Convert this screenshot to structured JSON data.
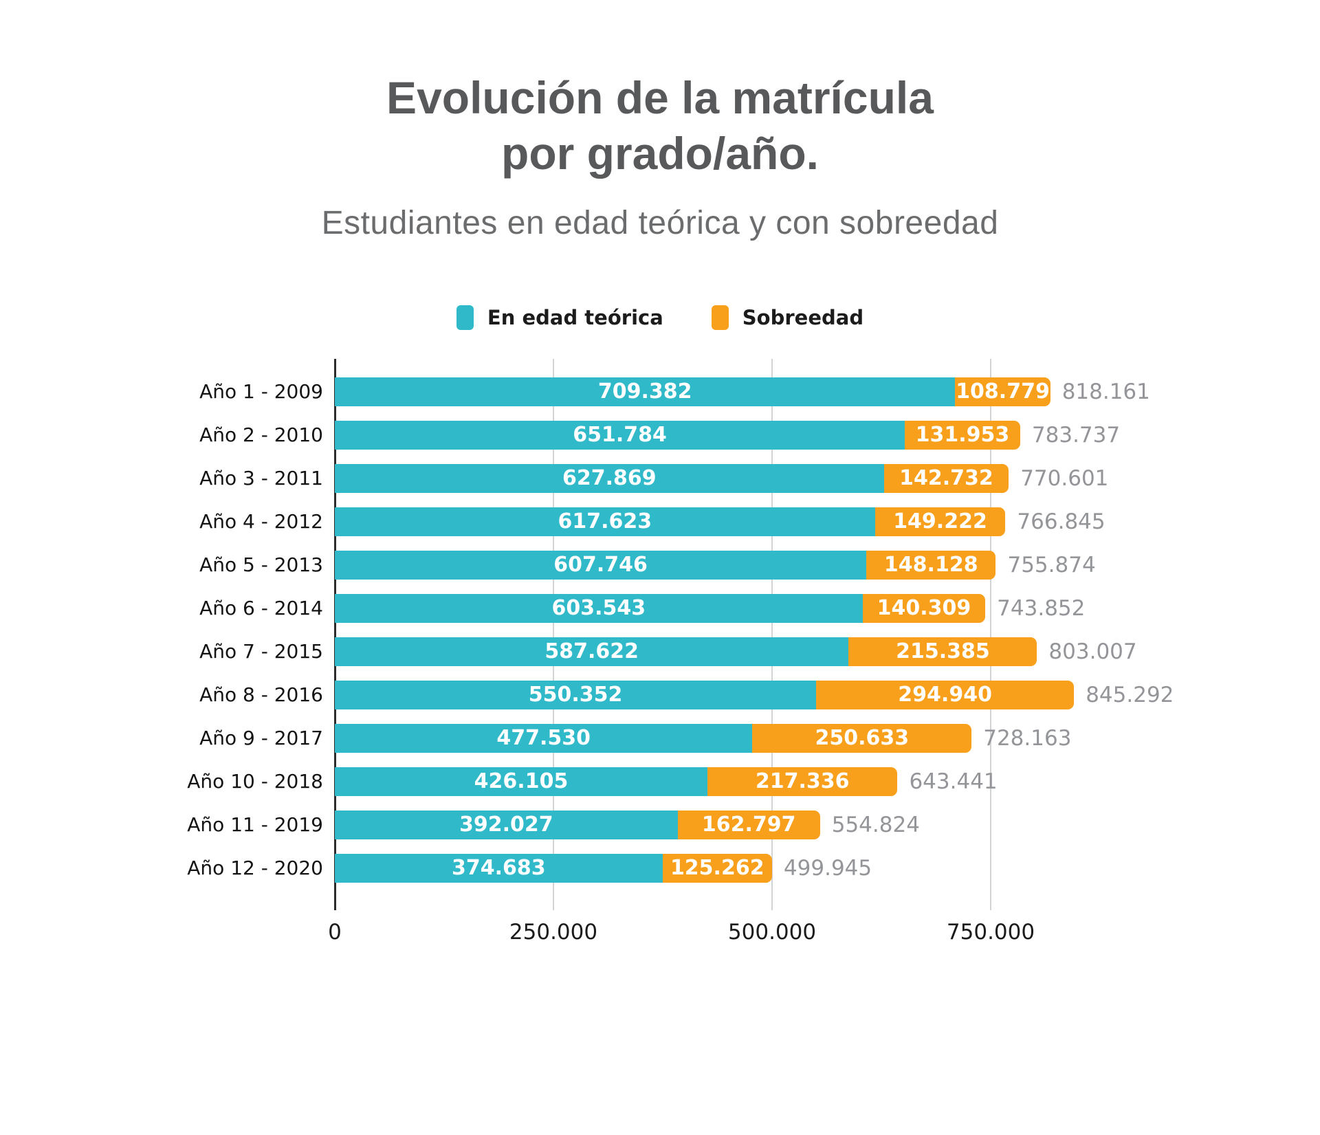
{
  "header": {
    "title_line1": "Evolución de la matrícula",
    "title_line2": "por grado/año.",
    "subtitle": "Estudiantes en edad teórica y con sobreedad",
    "title_color": "#58595b",
    "subtitle_color": "#6b6c6e"
  },
  "legend": {
    "items": [
      {
        "label": "En edad teórica",
        "color": "#2fb9c9"
      },
      {
        "label": "Sobreedad",
        "color": "#f8a01b"
      }
    ]
  },
  "chart_data": {
    "type": "bar",
    "orientation": "horizontal",
    "stacked": true,
    "title": "Evolución de la matrícula por grado/año.",
    "subtitle": "Estudiantes en edad teórica y con sobreedad",
    "categories": [
      "Año 1 - 2009",
      "Año 2 - 2010",
      "Año 3 - 2011",
      "Año 4 - 2012",
      "Año 5 - 2013",
      "Año 6 - 2014",
      "Año 7 - 2015",
      "Año 8 - 2016",
      "Año 9 - 2017",
      "Año 10 - 2018",
      "Año 11 - 2019",
      "Año 12 - 2020"
    ],
    "series": [
      {
        "name": "En edad teórica",
        "color": "#2fb9c9",
        "values": [
          709382,
          651784,
          627869,
          617623,
          607746,
          603543,
          587622,
          550352,
          477530,
          426105,
          392027,
          374683
        ]
      },
      {
        "name": "Sobreedad",
        "color": "#f8a01b",
        "values": [
          108779,
          131953,
          142732,
          149222,
          148128,
          140309,
          215385,
          294940,
          250633,
          217336,
          162797,
          125262
        ]
      }
    ],
    "totals": [
      818161,
      783737,
      770601,
      766845,
      755874,
      743852,
      803007,
      845292,
      728163,
      643441,
      554824,
      499945
    ],
    "xlim": [
      0,
      1000000
    ],
    "x_ticks": [
      {
        "value": 0,
        "label": "0"
      },
      {
        "value": 250000,
        "label": "250.000"
      },
      {
        "value": 500000,
        "label": "500.000"
      },
      {
        "value": 750000,
        "label": "750.000"
      }
    ],
    "grid": "vertical-light-gray",
    "legend_position": "top-center",
    "value_label_color": "#ffffff",
    "total_label_color": "#939598",
    "axis_label_color": "#141414",
    "number_format": "thousands-dot"
  }
}
